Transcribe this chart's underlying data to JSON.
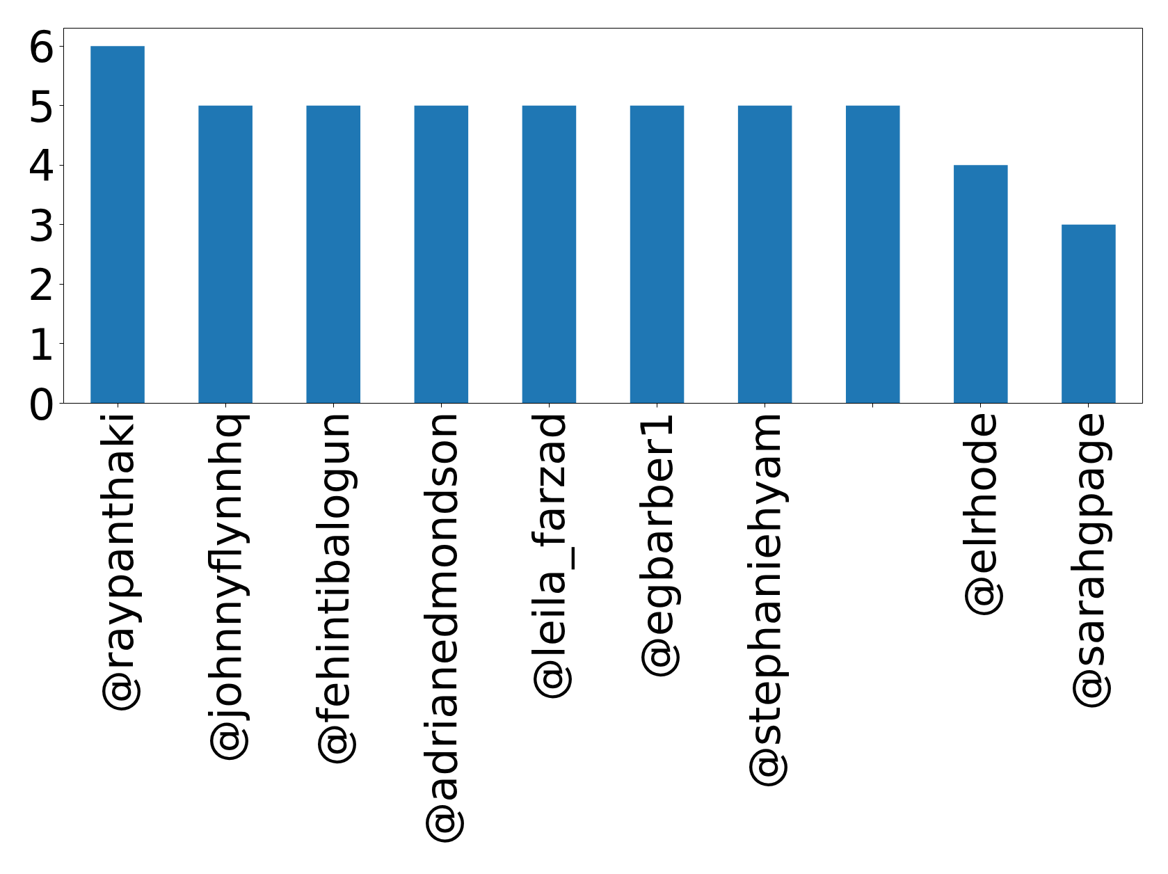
{
  "chart_data": {
    "type": "bar",
    "categories": [
      "@raypanthaki",
      "@johnnyflynnhq",
      "@fehintibalogun",
      "@adrianedmondson",
      "@leila_farzad",
      "@egbarber1",
      "@stephaniehyam",
      null,
      "@elrhode",
      "@sarahgpage"
    ],
    "values": [
      6,
      5,
      5,
      5,
      5,
      5,
      5,
      5,
      4,
      3
    ],
    "color": "#1f77b4",
    "ylim": [
      0,
      6.3
    ],
    "yticks": [
      0,
      1,
      2,
      3,
      4,
      5,
      6
    ],
    "grid": false
  }
}
